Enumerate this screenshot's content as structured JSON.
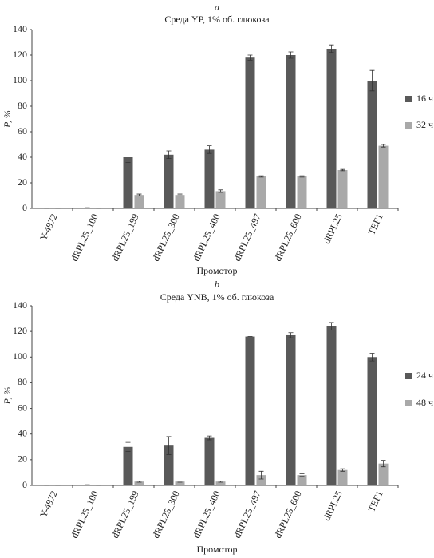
{
  "chart_data": [
    {
      "type": "bar",
      "label": "a",
      "title": "Среда YP, 1% об. глюкоза",
      "xlabel": "Промотор",
      "ylabel": "P, %",
      "categories": [
        "Y-4972",
        "dRPL25_100",
        "dRPL25_199",
        "dRPL25_300",
        "dRPL25_400",
        "dRPL25_497",
        "dRPL25_600",
        "dRPL25",
        "TEF1"
      ],
      "series": [
        {
          "name": "16 ч",
          "color": "#595959",
          "values": [
            0,
            0.5,
            40,
            42,
            46,
            118,
            120,
            125,
            100
          ],
          "errors": [
            0,
            0,
            4,
            3,
            3,
            2,
            2.5,
            3,
            8
          ]
        },
        {
          "name": "32 ч",
          "color": "#a9a9a9",
          "values": [
            0,
            0,
            10.5,
            10.5,
            13.5,
            25,
            25,
            30,
            49
          ],
          "errors": [
            0,
            0,
            0.7,
            0.7,
            1,
            0.5,
            0.5,
            0.5,
            1
          ]
        }
      ],
      "ylim": [
        0,
        140
      ],
      "yticks": [
        0,
        20,
        40,
        60,
        80,
        100,
        120,
        140
      ],
      "legend": "right"
    },
    {
      "type": "bar",
      "label": "b",
      "title": "Среда YNB, 1% об. глюкоза",
      "xlabel": "Промотор",
      "ylabel": "P, %",
      "categories": [
        "Y-4972",
        "dRPL25_100",
        "dRPL25_199",
        "dRPL25_300",
        "dRPL25_400",
        "dRPL25_497",
        "dRPL25_600",
        "dRPL25",
        "TEF1"
      ],
      "series": [
        {
          "name": "24 ч",
          "color": "#595959",
          "values": [
            0,
            0.5,
            30,
            31,
            37,
            116,
            117,
            124,
            100
          ],
          "errors": [
            0,
            0,
            3.5,
            7,
            1.5,
            0,
            2,
            3,
            3
          ]
        },
        {
          "name": "48 ч",
          "color": "#a9a9a9",
          "values": [
            0,
            0,
            3,
            3,
            3,
            8,
            8,
            12,
            17
          ],
          "errors": [
            0,
            0,
            0.5,
            0.5,
            0.5,
            3,
            1,
            1,
            2.5
          ]
        }
      ],
      "ylim": [
        0,
        140
      ],
      "yticks": [
        0,
        20,
        40,
        60,
        80,
        100,
        120,
        140
      ],
      "legend": "right"
    }
  ]
}
